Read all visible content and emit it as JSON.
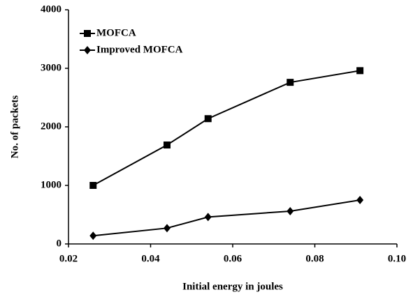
{
  "chart_data": {
    "type": "line",
    "x_label": "Initial energy in joules",
    "y_label": "No. of packets",
    "x": [
      0.026,
      0.044,
      0.054,
      0.074,
      0.091
    ],
    "series": [
      {
        "name": "MOFCA",
        "color": "#000000",
        "marker": "square",
        "values": [
          1000,
          1690,
          2140,
          2760,
          2960
        ]
      },
      {
        "name": "Improved MOFCA",
        "color": "#000000",
        "marker": "diamond",
        "values": [
          140,
          270,
          460,
          560,
          750
        ]
      }
    ],
    "xlim": [
      0.02,
      0.1
    ],
    "xticks": [
      0.02,
      0.04,
      0.06,
      0.08,
      {
        "value": 0.1,
        "label": "0.10"
      }
    ],
    "ylim": [
      0,
      4000
    ],
    "yticks": [
      0,
      1000,
      2000,
      3000,
      4000
    ],
    "legend": "upper left",
    "grid": false
  }
}
